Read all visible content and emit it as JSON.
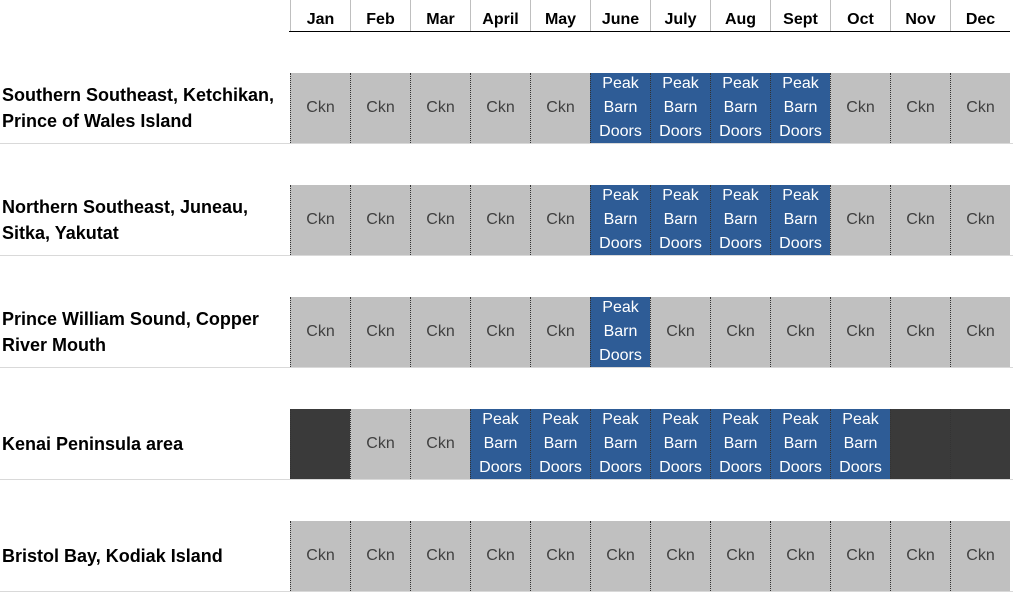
{
  "months": [
    "Jan",
    "Feb",
    "Mar",
    "April",
    "May",
    "June",
    "July",
    "Aug",
    "Sept",
    "Oct",
    "Nov",
    "Dec"
  ],
  "rows": [
    {
      "label_line1": "Southern Southeast, Ketchikan,",
      "label_line2": "Prince of Wales Island",
      "cells": [
        "Ckn",
        "Ckn",
        "Ckn",
        "Ckn",
        "Ckn",
        "Peak\nBarn\nDoors",
        "Peak\nBarn\nDoors",
        "Peak\nBarn\nDoors",
        "Peak\nBarn\nDoors",
        "Ckn",
        "Ckn",
        "Ckn"
      ],
      "kinds": [
        "ckn",
        "ckn",
        "ckn",
        "ckn",
        "ckn",
        "peak",
        "peak",
        "peak",
        "peak",
        "ckn",
        "ckn",
        "ckn"
      ]
    },
    {
      "label_line1": "Northern Southeast, Juneau,",
      "label_line2": "Sitka, Yakutat",
      "cells": [
        "Ckn",
        "Ckn",
        "Ckn",
        "Ckn",
        "Ckn",
        "Peak\nBarn\nDoors",
        "Peak\nBarn\nDoors",
        "Peak\nBarn\nDoors",
        "Peak\nBarn\nDoors",
        "Ckn",
        "Ckn",
        "Ckn"
      ],
      "kinds": [
        "ckn",
        "ckn",
        "ckn",
        "ckn",
        "ckn",
        "peak",
        "peak",
        "peak",
        "peak",
        "ckn",
        "ckn",
        "ckn"
      ]
    },
    {
      "label_line1": "Prince William Sound, Copper",
      "label_line2": "River Mouth",
      "cells": [
        "Ckn",
        "Ckn",
        "Ckn",
        "Ckn",
        "Ckn",
        "Peak\nBarn\nDoors",
        "Ckn",
        "Ckn",
        "Ckn",
        "Ckn",
        "Ckn",
        "Ckn"
      ],
      "kinds": [
        "ckn",
        "ckn",
        "ckn",
        "ckn",
        "ckn",
        "peak",
        "ckn",
        "ckn",
        "ckn",
        "ckn",
        "ckn",
        "ckn"
      ]
    },
    {
      "label_line1": "Kenai Peninsula area",
      "label_line2": "",
      "cells": [
        "",
        "Ckn",
        "Ckn",
        "Peak\nBarn\nDoors",
        "Peak\nBarn\nDoors",
        "Peak\nBarn\nDoors",
        "Peak\nBarn\nDoors",
        "Peak\nBarn\nDoors",
        "Peak\nBarn\nDoors",
        "Peak\nBarn\nDoors",
        "",
        ""
      ],
      "kinds": [
        "closed",
        "ckn",
        "ckn",
        "peak",
        "peak",
        "peak",
        "peak",
        "peak",
        "peak",
        "peak",
        "closed",
        "closed"
      ]
    },
    {
      "label_line1": "Bristol Bay, Kodiak Island",
      "label_line2": "",
      "cells": [
        "Ckn",
        "Ckn",
        "Ckn",
        "Ckn",
        "Ckn",
        "Ckn",
        "Ckn",
        "Ckn",
        "Ckn",
        "Ckn",
        "Ckn",
        "Ckn"
      ],
      "kinds": [
        "ckn",
        "ckn",
        "ckn",
        "ckn",
        "ckn",
        "ckn",
        "ckn",
        "ckn",
        "ckn",
        "ckn",
        "ckn",
        "ckn"
      ]
    }
  ],
  "colors": {
    "peak": "#2e5c96",
    "ckn": "#c0c0c0",
    "closed": "#3a3a3a"
  }
}
